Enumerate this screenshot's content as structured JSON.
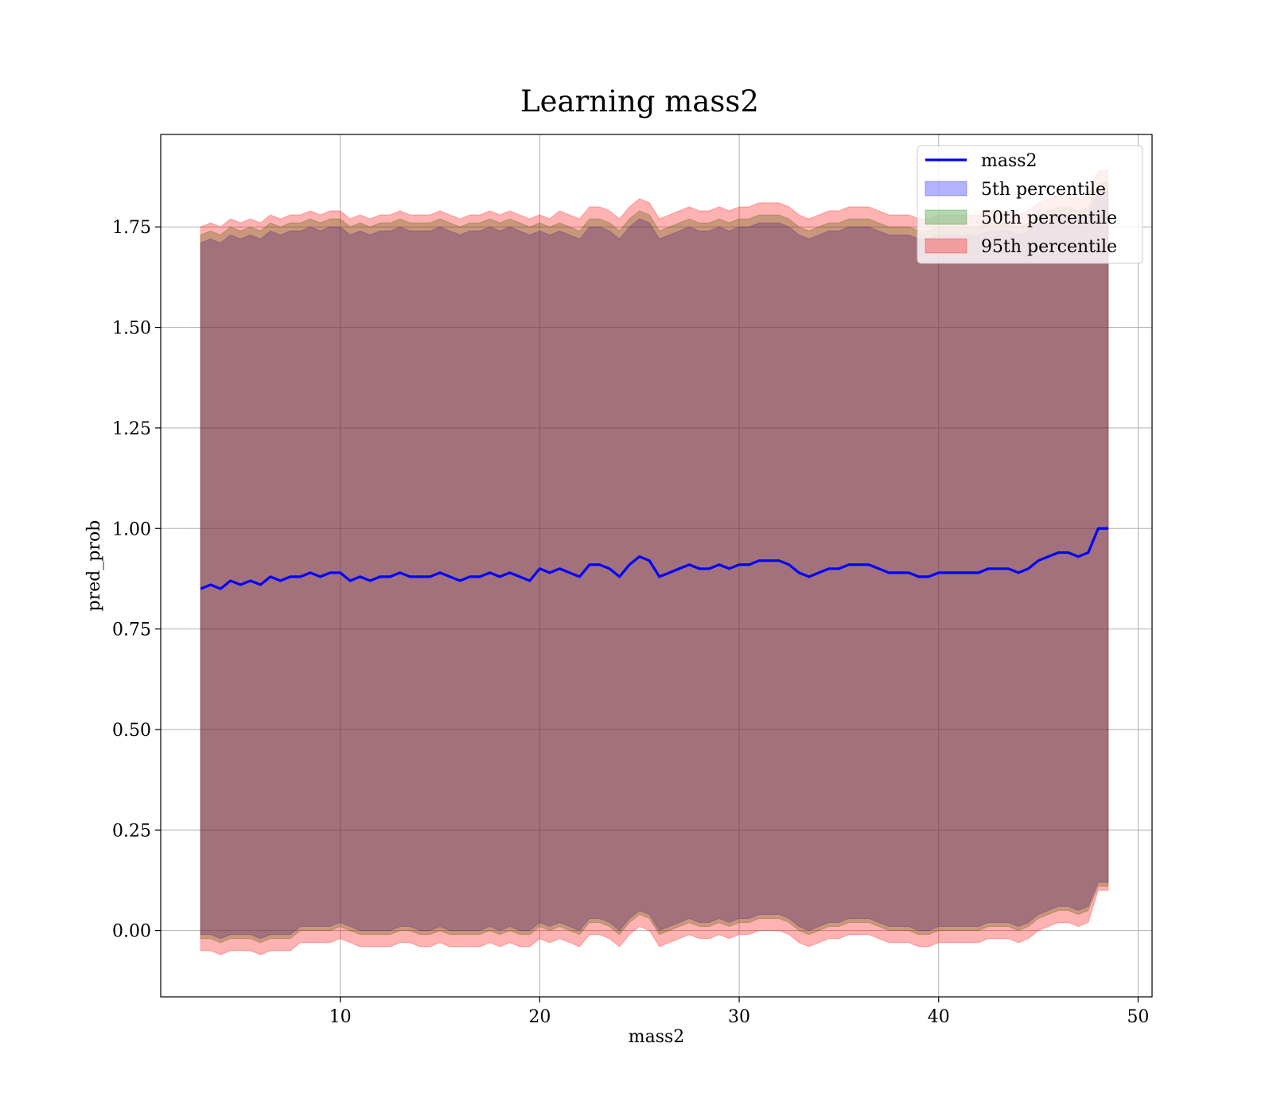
{
  "chart_data": {
    "type": "area",
    "title": "Learning mass2",
    "xlabel": "mass2",
    "ylabel": "pred_prob",
    "xlim": [
      1.0,
      50.7
    ],
    "ylim": [
      -0.165,
      1.98
    ],
    "xticks": [
      10,
      20,
      30,
      40,
      50
    ],
    "yticks": [
      0.0,
      0.25,
      0.5,
      0.75,
      1.0,
      1.25,
      1.5,
      1.75
    ],
    "ytick_labels": [
      "0.00",
      "0.25",
      "0.50",
      "0.75",
      "1.00",
      "1.25",
      "1.50",
      "1.75"
    ],
    "grid": true,
    "legend_position": "top-right",
    "x": [
      3.0,
      3.5,
      4.0,
      4.5,
      5.0,
      5.5,
      6.0,
      6.5,
      7.0,
      7.5,
      8.0,
      8.5,
      9.0,
      9.5,
      10.0,
      10.5,
      11.0,
      11.5,
      12.0,
      12.5,
      13.0,
      13.5,
      14.0,
      14.5,
      15.0,
      15.5,
      16.0,
      16.5,
      17.0,
      17.5,
      18.0,
      18.5,
      19.0,
      19.5,
      20.0,
      20.5,
      21.0,
      21.5,
      22.0,
      22.5,
      23.0,
      23.5,
      24.0,
      24.5,
      25.0,
      25.5,
      26.0,
      26.5,
      27.0,
      27.5,
      28.0,
      28.5,
      29.0,
      29.5,
      30.0,
      30.5,
      31.0,
      31.5,
      32.0,
      32.5,
      33.0,
      33.5,
      34.0,
      34.5,
      35.0,
      35.5,
      36.0,
      36.5,
      37.0,
      37.5,
      38.0,
      38.5,
      39.0,
      39.5,
      40.0,
      40.5,
      41.0,
      41.5,
      42.0,
      42.5,
      43.0,
      43.5,
      44.0,
      44.5,
      45.0,
      45.5,
      46.0,
      46.5,
      47.0,
      47.5,
      48.0,
      48.5
    ],
    "series": [
      {
        "name": "mass2",
        "type": "line",
        "color": "#0000ff",
        "values": [
          0.85,
          0.86,
          0.85,
          0.87,
          0.86,
          0.87,
          0.86,
          0.88,
          0.87,
          0.88,
          0.88,
          0.89,
          0.88,
          0.89,
          0.89,
          0.87,
          0.88,
          0.87,
          0.88,
          0.88,
          0.89,
          0.88,
          0.88,
          0.88,
          0.89,
          0.88,
          0.87,
          0.88,
          0.88,
          0.89,
          0.88,
          0.89,
          0.88,
          0.87,
          0.9,
          0.89,
          0.9,
          0.89,
          0.88,
          0.91,
          0.91,
          0.9,
          0.88,
          0.91,
          0.93,
          0.92,
          0.88,
          0.89,
          0.9,
          0.91,
          0.9,
          0.9,
          0.91,
          0.9,
          0.91,
          0.91,
          0.92,
          0.92,
          0.92,
          0.91,
          0.89,
          0.88,
          0.89,
          0.9,
          0.9,
          0.91,
          0.91,
          0.91,
          0.9,
          0.89,
          0.89,
          0.89,
          0.88,
          0.88,
          0.89,
          0.89,
          0.89,
          0.89,
          0.89,
          0.9,
          0.9,
          0.9,
          0.89,
          0.9,
          0.92,
          0.93,
          0.94,
          0.94,
          0.93,
          0.94,
          1.0,
          1.0
        ]
      },
      {
        "name": "5th percentile",
        "type": "band",
        "color": "#0000ff",
        "lower": [
          -0.01,
          -0.01,
          -0.02,
          -0.01,
          -0.01,
          -0.01,
          -0.02,
          -0.01,
          -0.01,
          -0.01,
          0.01,
          0.01,
          0.01,
          0.01,
          0.02,
          0.01,
          0.0,
          0.0,
          0.0,
          0.0,
          0.01,
          0.01,
          0.0,
          0.0,
          0.01,
          0.0,
          0.0,
          0.0,
          0.0,
          0.01,
          0.0,
          0.01,
          0.0,
          0.0,
          0.02,
          0.01,
          0.02,
          0.01,
          0.0,
          0.03,
          0.03,
          0.02,
          0.0,
          0.03,
          0.05,
          0.04,
          0.0,
          0.01,
          0.02,
          0.03,
          0.02,
          0.02,
          0.03,
          0.02,
          0.03,
          0.03,
          0.04,
          0.04,
          0.04,
          0.03,
          0.01,
          0.0,
          0.01,
          0.02,
          0.02,
          0.03,
          0.03,
          0.03,
          0.02,
          0.01,
          0.01,
          0.01,
          0.0,
          0.0,
          0.01,
          0.01,
          0.01,
          0.01,
          0.01,
          0.02,
          0.02,
          0.02,
          0.01,
          0.02,
          0.04,
          0.05,
          0.06,
          0.06,
          0.05,
          0.06,
          0.12,
          0.12
        ],
        "upper": [
          1.71,
          1.72,
          1.71,
          1.73,
          1.72,
          1.73,
          1.72,
          1.74,
          1.73,
          1.74,
          1.74,
          1.75,
          1.74,
          1.75,
          1.75,
          1.73,
          1.74,
          1.73,
          1.74,
          1.74,
          1.75,
          1.74,
          1.74,
          1.74,
          1.75,
          1.74,
          1.73,
          1.74,
          1.74,
          1.75,
          1.74,
          1.75,
          1.74,
          1.73,
          1.74,
          1.73,
          1.74,
          1.73,
          1.72,
          1.75,
          1.75,
          1.74,
          1.72,
          1.75,
          1.77,
          1.76,
          1.72,
          1.73,
          1.74,
          1.75,
          1.74,
          1.74,
          1.75,
          1.74,
          1.75,
          1.75,
          1.76,
          1.76,
          1.76,
          1.75,
          1.73,
          1.72,
          1.73,
          1.74,
          1.74,
          1.75,
          1.75,
          1.75,
          1.74,
          1.73,
          1.73,
          1.73,
          1.72,
          1.72,
          1.73,
          1.73,
          1.73,
          1.73,
          1.73,
          1.74,
          1.74,
          1.74,
          1.73,
          1.74,
          1.76,
          1.77,
          1.78,
          1.78,
          1.77,
          1.78,
          1.84,
          1.84
        ]
      },
      {
        "name": "50th percentile",
        "type": "band",
        "color": "#008000",
        "lower": [
          -0.02,
          -0.02,
          -0.03,
          -0.02,
          -0.02,
          -0.02,
          -0.03,
          -0.02,
          -0.02,
          -0.02,
          0.0,
          0.0,
          0.0,
          0.0,
          0.01,
          0.0,
          -0.01,
          -0.01,
          -0.01,
          -0.01,
          0.0,
          0.0,
          -0.01,
          -0.01,
          0.0,
          -0.01,
          -0.01,
          -0.01,
          -0.01,
          0.0,
          -0.01,
          0.0,
          -0.01,
          -0.01,
          0.01,
          0.0,
          0.01,
          0.0,
          -0.01,
          0.02,
          0.02,
          0.01,
          -0.01,
          0.02,
          0.04,
          0.03,
          -0.01,
          0.0,
          0.01,
          0.02,
          0.01,
          0.01,
          0.02,
          0.01,
          0.02,
          0.02,
          0.03,
          0.03,
          0.03,
          0.02,
          0.0,
          -0.01,
          0.0,
          0.01,
          0.01,
          0.02,
          0.02,
          0.02,
          0.01,
          0.0,
          0.0,
          0.0,
          -0.01,
          -0.01,
          0.0,
          0.0,
          0.0,
          0.0,
          0.0,
          0.01,
          0.01,
          0.01,
          0.0,
          0.01,
          0.03,
          0.04,
          0.05,
          0.05,
          0.04,
          0.05,
          0.11,
          0.11
        ],
        "upper": [
          1.73,
          1.74,
          1.73,
          1.75,
          1.74,
          1.75,
          1.74,
          1.76,
          1.75,
          1.76,
          1.76,
          1.77,
          1.76,
          1.77,
          1.77,
          1.75,
          1.76,
          1.75,
          1.76,
          1.76,
          1.77,
          1.76,
          1.76,
          1.76,
          1.77,
          1.76,
          1.75,
          1.76,
          1.76,
          1.77,
          1.76,
          1.77,
          1.76,
          1.75,
          1.76,
          1.75,
          1.76,
          1.75,
          1.74,
          1.77,
          1.77,
          1.76,
          1.74,
          1.77,
          1.79,
          1.78,
          1.74,
          1.75,
          1.76,
          1.77,
          1.76,
          1.76,
          1.77,
          1.76,
          1.77,
          1.77,
          1.78,
          1.78,
          1.78,
          1.77,
          1.75,
          1.74,
          1.75,
          1.76,
          1.76,
          1.77,
          1.77,
          1.77,
          1.76,
          1.75,
          1.75,
          1.75,
          1.74,
          1.74,
          1.75,
          1.75,
          1.75,
          1.75,
          1.75,
          1.76,
          1.76,
          1.76,
          1.75,
          1.76,
          1.78,
          1.79,
          1.8,
          1.8,
          1.79,
          1.8,
          1.86,
          1.86
        ]
      },
      {
        "name": "95th percentile",
        "type": "band",
        "color": "#ff0000",
        "lower": [
          -0.05,
          -0.05,
          -0.06,
          -0.05,
          -0.05,
          -0.05,
          -0.06,
          -0.05,
          -0.05,
          -0.05,
          -0.03,
          -0.03,
          -0.03,
          -0.03,
          -0.02,
          -0.03,
          -0.04,
          -0.04,
          -0.04,
          -0.04,
          -0.03,
          -0.03,
          -0.04,
          -0.04,
          -0.03,
          -0.04,
          -0.04,
          -0.04,
          -0.04,
          -0.03,
          -0.04,
          -0.03,
          -0.04,
          -0.04,
          -0.02,
          -0.03,
          -0.02,
          -0.03,
          -0.04,
          -0.01,
          -0.01,
          -0.02,
          -0.04,
          -0.01,
          0.01,
          0.0,
          -0.04,
          -0.03,
          -0.02,
          -0.01,
          -0.02,
          -0.02,
          -0.01,
          -0.02,
          -0.01,
          -0.01,
          0.0,
          0.0,
          0.0,
          -0.01,
          -0.03,
          -0.04,
          -0.03,
          -0.02,
          -0.02,
          -0.01,
          -0.01,
          -0.01,
          -0.02,
          -0.03,
          -0.03,
          -0.03,
          -0.04,
          -0.04,
          -0.03,
          -0.03,
          -0.03,
          -0.03,
          -0.03,
          -0.02,
          -0.02,
          -0.02,
          -0.03,
          -0.02,
          0.0,
          0.01,
          0.02,
          0.02,
          0.01,
          0.02,
          0.1,
          0.1
        ],
        "upper": [
          1.75,
          1.76,
          1.75,
          1.77,
          1.76,
          1.77,
          1.76,
          1.78,
          1.77,
          1.78,
          1.78,
          1.79,
          1.78,
          1.79,
          1.79,
          1.77,
          1.78,
          1.77,
          1.78,
          1.78,
          1.79,
          1.78,
          1.78,
          1.78,
          1.79,
          1.78,
          1.77,
          1.78,
          1.78,
          1.79,
          1.78,
          1.79,
          1.78,
          1.77,
          1.78,
          1.77,
          1.79,
          1.78,
          1.77,
          1.8,
          1.8,
          1.79,
          1.77,
          1.8,
          1.82,
          1.81,
          1.77,
          1.78,
          1.79,
          1.8,
          1.79,
          1.79,
          1.8,
          1.79,
          1.8,
          1.8,
          1.81,
          1.81,
          1.81,
          1.8,
          1.78,
          1.77,
          1.78,
          1.79,
          1.79,
          1.8,
          1.8,
          1.8,
          1.79,
          1.78,
          1.78,
          1.78,
          1.77,
          1.77,
          1.78,
          1.78,
          1.78,
          1.78,
          1.78,
          1.79,
          1.79,
          1.79,
          1.78,
          1.79,
          1.81,
          1.82,
          1.83,
          1.83,
          1.82,
          1.83,
          1.89,
          1.89
        ]
      }
    ]
  }
}
